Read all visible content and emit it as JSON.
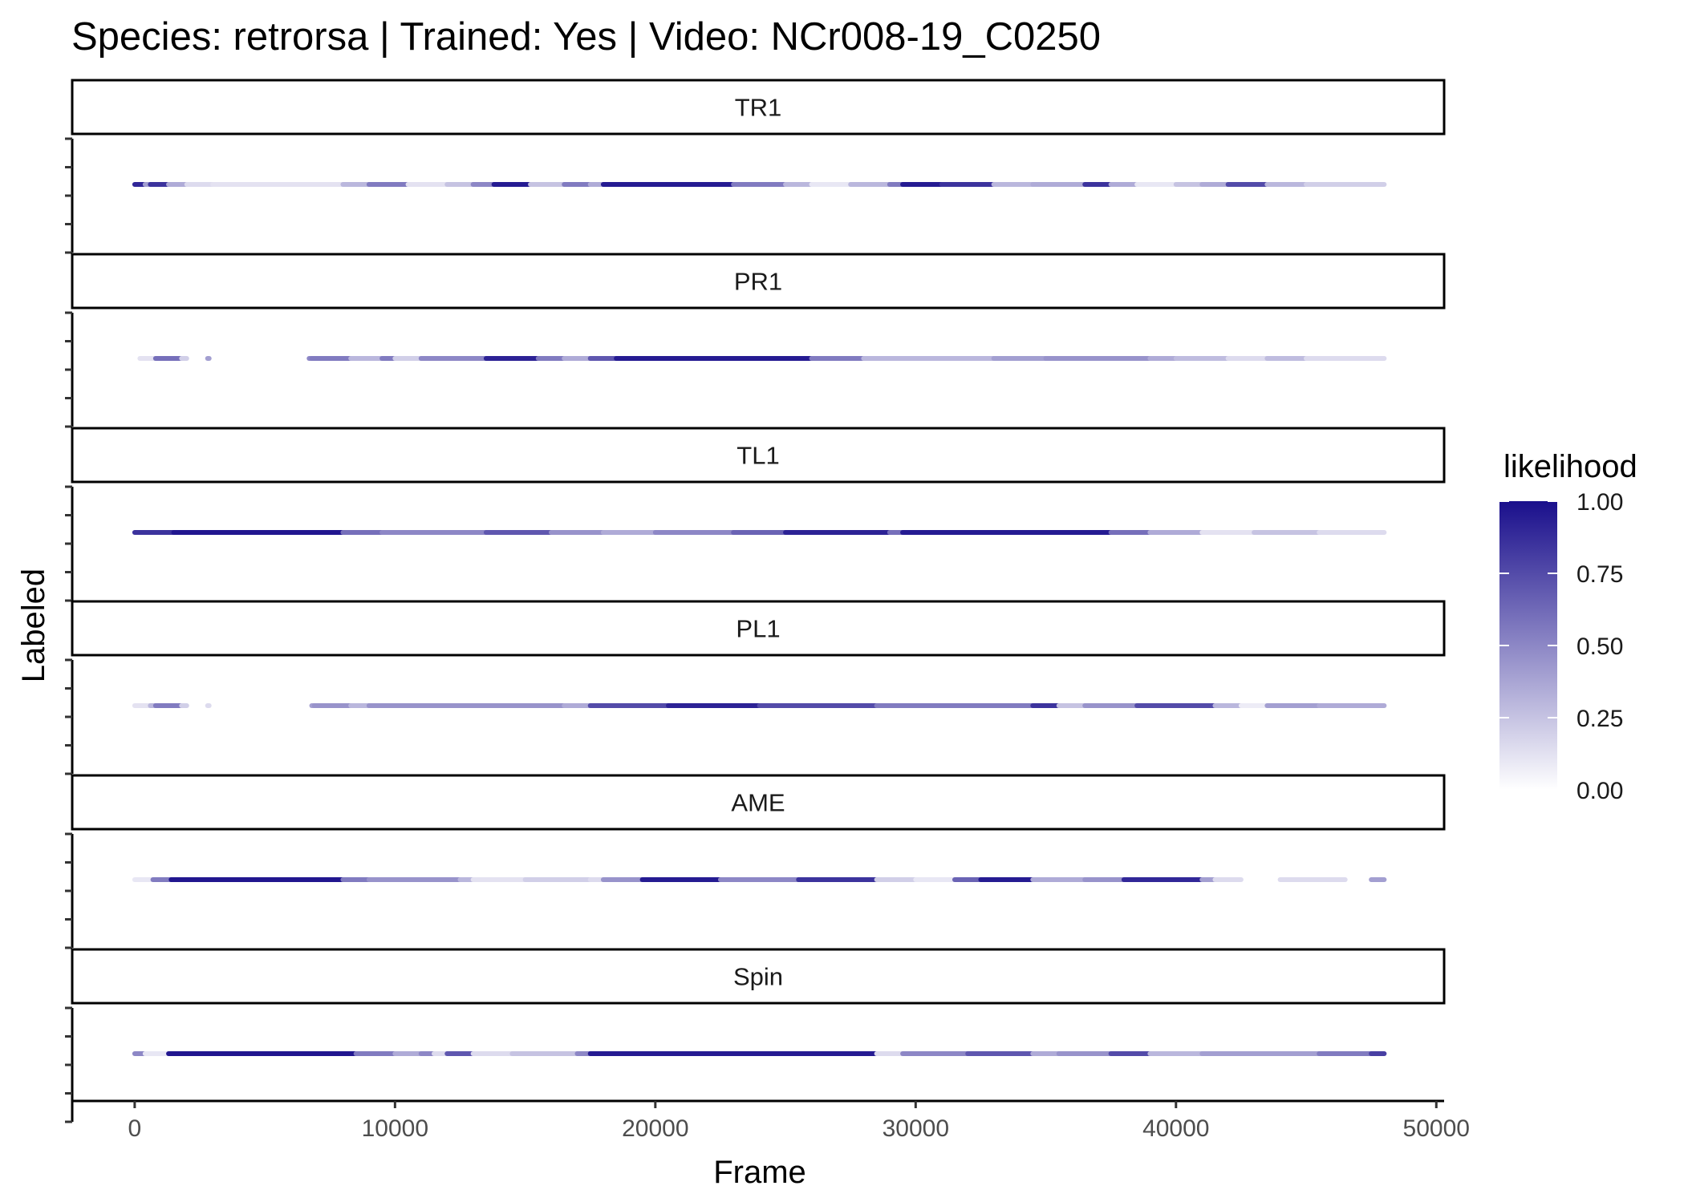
{
  "chart_data": {
    "type": "scatter",
    "title": "Species: retrorsa | Trained: Yes | Video: NCr008-19_C0250",
    "xlabel": "Frame",
    "ylabel": "Labeled",
    "xlim": [
      -2400,
      50300
    ],
    "x_ticks": [
      0,
      10000,
      20000,
      30000,
      40000,
      50000
    ],
    "x_tick_labels": [
      "0",
      "10000",
      "20000",
      "30000",
      "40000",
      "50000"
    ],
    "grid": false,
    "legend": {
      "title": "likelihood",
      "position": "right",
      "ticks": [
        0.0,
        0.25,
        0.5,
        0.75,
        1.0
      ],
      "tick_labels": [
        "0.00",
        "0.25",
        "0.50",
        "0.75",
        "1.00"
      ],
      "low_color": "#ffffff",
      "high_color": "#1a0f8c"
    },
    "facets": [
      {
        "name": "TR1",
        "segments": [
          [
            0,
            400,
            0.9
          ],
          [
            400,
            600,
            0.4
          ],
          [
            600,
            1300,
            0.85
          ],
          [
            1300,
            2000,
            0.35
          ],
          [
            2000,
            3000,
            0.15
          ],
          [
            3000,
            8000,
            0.12
          ],
          [
            8000,
            9000,
            0.3
          ],
          [
            9000,
            10500,
            0.55
          ],
          [
            10500,
            12000,
            0.12
          ],
          [
            12000,
            13000,
            0.25
          ],
          [
            13000,
            13800,
            0.5
          ],
          [
            13800,
            15200,
            0.95
          ],
          [
            15200,
            16500,
            0.25
          ],
          [
            16500,
            17500,
            0.55
          ],
          [
            17500,
            18000,
            0.35
          ],
          [
            18000,
            20500,
            0.95
          ],
          [
            20500,
            23000,
            0.95
          ],
          [
            23000,
            25000,
            0.55
          ],
          [
            25000,
            26000,
            0.3
          ],
          [
            26000,
            27500,
            0.1
          ],
          [
            27500,
            29000,
            0.3
          ],
          [
            29000,
            29500,
            0.55
          ],
          [
            29500,
            31000,
            0.95
          ],
          [
            31000,
            33000,
            0.85
          ],
          [
            33000,
            34500,
            0.3
          ],
          [
            34500,
            36500,
            0.35
          ],
          [
            36500,
            37500,
            0.85
          ],
          [
            37500,
            38500,
            0.35
          ],
          [
            38500,
            40000,
            0.1
          ],
          [
            40000,
            41000,
            0.25
          ],
          [
            41000,
            42000,
            0.35
          ],
          [
            42000,
            43500,
            0.75
          ],
          [
            43500,
            45000,
            0.3
          ],
          [
            45000,
            48000,
            0.2
          ]
        ]
      },
      {
        "name": "PR1",
        "segments": [
          [
            200,
            800,
            0.12
          ],
          [
            800,
            1800,
            0.6
          ],
          [
            1800,
            2000,
            0.2
          ],
          [
            2800,
            2850,
            0.4
          ],
          [
            6700,
            6800,
            0.5
          ],
          [
            6800,
            8300,
            0.55
          ],
          [
            8300,
            9500,
            0.3
          ],
          [
            9500,
            10000,
            0.55
          ],
          [
            10000,
            11000,
            0.2
          ],
          [
            11000,
            13500,
            0.5
          ],
          [
            13500,
            15500,
            0.92
          ],
          [
            15500,
            16500,
            0.55
          ],
          [
            16500,
            17500,
            0.35
          ],
          [
            17500,
            18500,
            0.7
          ],
          [
            18500,
            26000,
            0.95
          ],
          [
            26000,
            28000,
            0.55
          ],
          [
            28000,
            33000,
            0.3
          ],
          [
            33000,
            35000,
            0.4
          ],
          [
            35000,
            39000,
            0.45
          ],
          [
            39000,
            40000,
            0.35
          ],
          [
            40000,
            42000,
            0.28
          ],
          [
            42000,
            43500,
            0.15
          ],
          [
            43500,
            45000,
            0.28
          ],
          [
            45000,
            48000,
            0.15
          ]
        ]
      },
      {
        "name": "TL1",
        "segments": [
          [
            0,
            1500,
            0.85
          ],
          [
            1500,
            8000,
            0.97
          ],
          [
            8000,
            9500,
            0.6
          ],
          [
            9500,
            13500,
            0.5
          ],
          [
            13500,
            16000,
            0.7
          ],
          [
            16000,
            18000,
            0.45
          ],
          [
            18000,
            20000,
            0.35
          ],
          [
            20000,
            23000,
            0.5
          ],
          [
            23000,
            25000,
            0.65
          ],
          [
            25000,
            29000,
            0.92
          ],
          [
            29000,
            29500,
            0.6
          ],
          [
            29500,
            37500,
            0.95
          ],
          [
            37500,
            39000,
            0.6
          ],
          [
            39000,
            41000,
            0.35
          ],
          [
            41000,
            43000,
            0.12
          ],
          [
            43000,
            45500,
            0.25
          ],
          [
            45500,
            48000,
            0.15
          ]
        ]
      },
      {
        "name": "PL1",
        "segments": [
          [
            0,
            600,
            0.12
          ],
          [
            600,
            800,
            0.3
          ],
          [
            800,
            1800,
            0.55
          ],
          [
            1800,
            2000,
            0.2
          ],
          [
            2800,
            2850,
            0.15
          ],
          [
            6800,
            6900,
            0.4
          ],
          [
            6900,
            8300,
            0.45
          ],
          [
            8300,
            9000,
            0.3
          ],
          [
            9000,
            13000,
            0.45
          ],
          [
            13000,
            16500,
            0.45
          ],
          [
            16500,
            17500,
            0.35
          ],
          [
            17500,
            20500,
            0.75
          ],
          [
            20500,
            24000,
            0.92
          ],
          [
            24000,
            28500,
            0.75
          ],
          [
            28500,
            31000,
            0.55
          ],
          [
            31000,
            34500,
            0.55
          ],
          [
            34500,
            35500,
            0.85
          ],
          [
            35500,
            36500,
            0.25
          ],
          [
            36500,
            38500,
            0.45
          ],
          [
            38500,
            41500,
            0.75
          ],
          [
            41500,
            42500,
            0.3
          ],
          [
            42500,
            43500,
            0.08
          ],
          [
            43500,
            45500,
            0.4
          ],
          [
            45500,
            48000,
            0.35
          ]
        ]
      },
      {
        "name": "AME",
        "segments": [
          [
            0,
            700,
            0.1
          ],
          [
            700,
            1400,
            0.55
          ],
          [
            1400,
            8000,
            0.97
          ],
          [
            8000,
            9000,
            0.55
          ],
          [
            9000,
            12500,
            0.45
          ],
          [
            12500,
            13000,
            0.3
          ],
          [
            13000,
            15000,
            0.12
          ],
          [
            15000,
            17500,
            0.2
          ],
          [
            17500,
            18000,
            0.15
          ],
          [
            18000,
            19500,
            0.45
          ],
          [
            19500,
            22500,
            0.95
          ],
          [
            22500,
            25500,
            0.5
          ],
          [
            25500,
            28500,
            0.85
          ],
          [
            28500,
            30000,
            0.2
          ],
          [
            30000,
            31500,
            0.1
          ],
          [
            31500,
            32500,
            0.65
          ],
          [
            32500,
            34500,
            0.95
          ],
          [
            34500,
            36500,
            0.35
          ],
          [
            36500,
            38000,
            0.45
          ],
          [
            38000,
            41000,
            0.9
          ],
          [
            41000,
            41500,
            0.4
          ],
          [
            41500,
            42500,
            0.15
          ],
          [
            44000,
            46500,
            0.15
          ],
          [
            47500,
            48000,
            0.4
          ]
        ]
      },
      {
        "name": "Spin",
        "segments": [
          [
            0,
            400,
            0.5
          ],
          [
            400,
            1300,
            0.1
          ],
          [
            1300,
            8500,
            0.97
          ],
          [
            8500,
            10000,
            0.55
          ],
          [
            10000,
            11000,
            0.35
          ],
          [
            11000,
            11500,
            0.5
          ],
          [
            11500,
            12000,
            0.15
          ],
          [
            12000,
            13000,
            0.7
          ],
          [
            13000,
            14500,
            0.15
          ],
          [
            14500,
            17000,
            0.25
          ],
          [
            17000,
            17500,
            0.5
          ],
          [
            17500,
            28500,
            0.95
          ],
          [
            28500,
            29500,
            0.15
          ],
          [
            29500,
            32000,
            0.5
          ],
          [
            32000,
            34500,
            0.7
          ],
          [
            34500,
            35500,
            0.35
          ],
          [
            35500,
            37500,
            0.45
          ],
          [
            37500,
            39000,
            0.75
          ],
          [
            39000,
            41000,
            0.3
          ],
          [
            41000,
            43000,
            0.4
          ],
          [
            43000,
            45500,
            0.4
          ],
          [
            45500,
            47500,
            0.55
          ],
          [
            47500,
            48000,
            0.8
          ]
        ]
      }
    ]
  }
}
